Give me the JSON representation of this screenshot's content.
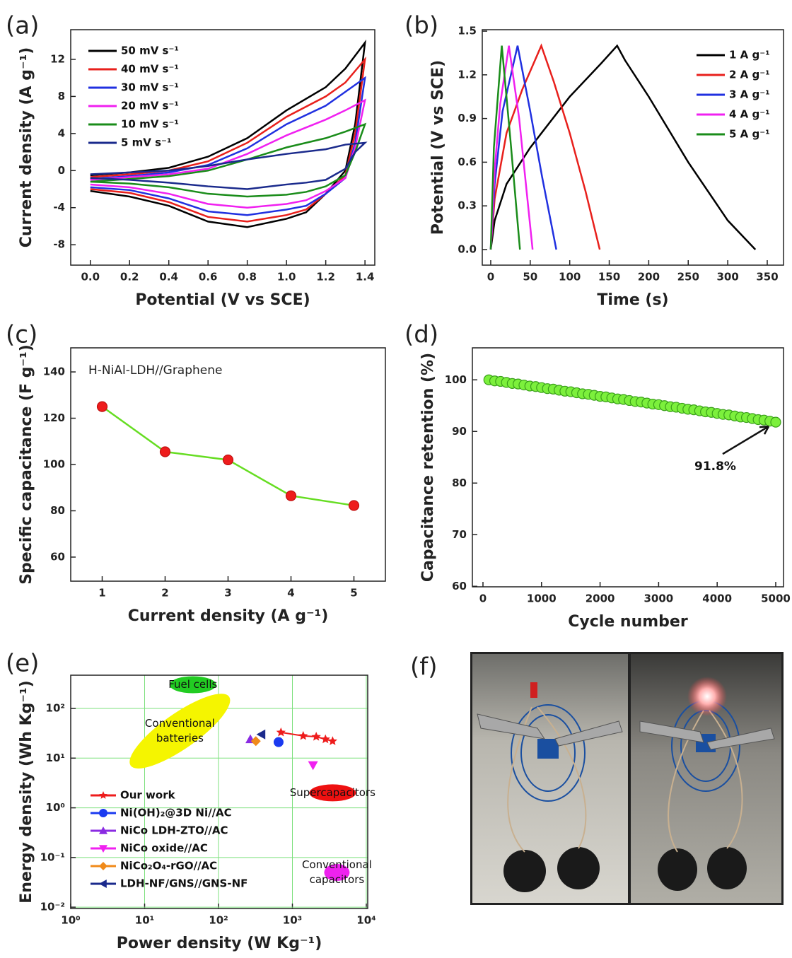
{
  "chart_data": [
    {
      "type": "line",
      "panel_label": "(a)",
      "xlabel": "Potential (V vs SCE)",
      "ylabel": "Current density (A g⁻¹)",
      "xlim": [
        -0.1,
        1.45
      ],
      "ylim": [
        -10.2,
        15.2
      ],
      "xticks": [
        {
          "value": 0,
          "label": "0.0"
        },
        0.2,
        0.4,
        0.6,
        0.8,
        {
          "value": 1,
          "label": "1.0"
        },
        1.2,
        1.4
      ],
      "yticks": [
        -8,
        -4,
        0,
        4,
        8,
        12
      ],
      "x": [
        0,
        0.2,
        0.4,
        0.6,
        0.8,
        1.0,
        1.2,
        1.3,
        1.4,
        1.35,
        1.3,
        1.2,
        1.1,
        1.0,
        0.8,
        0.6,
        0.4,
        0.2,
        0
      ],
      "series": [
        {
          "name": "50 mV s⁻¹",
          "color": "#000000",
          "values": [
            -0.5,
            -0.2,
            0.3,
            1.5,
            3.5,
            6.5,
            9,
            11,
            13.8,
            5,
            0,
            -2.5,
            -4.5,
            -5.2,
            -6.1,
            -5.5,
            -3.8,
            -2.8,
            -2.2
          ]
        },
        {
          "name": "40 mV s⁻¹",
          "color": "#e8201c",
          "values": [
            -0.7,
            -0.4,
            0,
            1.0,
            3,
            5.8,
            8,
            9.5,
            12,
            4,
            -0.5,
            -2.5,
            -4.2,
            -4.8,
            -5.5,
            -5,
            -3.4,
            -2.4,
            -2.0
          ]
        },
        {
          "name": "30 mV s⁻¹",
          "color": "#2030e0",
          "values": [
            -0.9,
            -0.6,
            -0.2,
            0.6,
            2.4,
            5,
            7,
            8.5,
            10,
            3,
            -0.8,
            -2.5,
            -3.8,
            -4.2,
            -4.8,
            -4.4,
            -3,
            -2.1,
            -1.8
          ]
        },
        {
          "name": "20 mV s⁻¹",
          "color": "#f020f0",
          "values": [
            -1,
            -0.7,
            -0.4,
            0.2,
            1.8,
            3.8,
            5.5,
            6.5,
            7.6,
            2.5,
            -0.8,
            -2.2,
            -3.2,
            -3.6,
            -4,
            -3.6,
            -2.5,
            -1.8,
            -1.5
          ]
        },
        {
          "name": "10 mV s⁻¹",
          "color": "#1a8c1a",
          "values": [
            -1.2,
            -0.9,
            -0.6,
            0,
            1.2,
            2.5,
            3.5,
            4.2,
            5,
            2,
            -0.5,
            -1.7,
            -2.3,
            -2.6,
            -2.8,
            -2.5,
            -1.8,
            -1.4,
            -1.2
          ]
        },
        {
          "name": "5 mV s⁻¹",
          "color": "#1a2a8c",
          "values": [
            -0.4,
            -0.2,
            0,
            0.5,
            1.2,
            1.8,
            2.3,
            2.8,
            3,
            2,
            0.2,
            -1,
            -1.3,
            -1.5,
            -2,
            -1.7,
            -1.3,
            -1,
            -0.8
          ]
        }
      ]
    },
    {
      "type": "line",
      "panel_label": "(b)",
      "xlabel": "Time (s)",
      "ylabel": "Potential (V vs SCE)",
      "xlim": [
        -10.7,
        370.6
      ],
      "ylim": [
        -0.107,
        1.51
      ],
      "xticks": [
        0,
        50,
        100,
        150,
        200,
        250,
        300,
        350
      ],
      "yticks": [
        {
          "value": 0,
          "label": "0.0"
        },
        0.3,
        0.6,
        0.9,
        1.2,
        1.5
      ],
      "series": [
        {
          "name": "1 A g⁻¹",
          "color": "#000000",
          "x": [
            0,
            5,
            20,
            50,
            100,
            140,
            160,
            170,
            200,
            250,
            300,
            335
          ],
          "values": [
            0,
            0.2,
            0.45,
            0.7,
            1.05,
            1.28,
            1.4,
            1.3,
            1.05,
            0.6,
            0.2,
            0
          ]
        },
        {
          "name": "2 A g⁻¹",
          "color": "#e8201c",
          "x": [
            0,
            5,
            20,
            40,
            64,
            80,
            100,
            120,
            138
          ],
          "values": [
            0,
            0.35,
            0.8,
            1.1,
            1.4,
            1.15,
            0.8,
            0.4,
            0
          ]
        },
        {
          "name": "3 A g⁻¹",
          "color": "#2030e0",
          "x": [
            0,
            5,
            15,
            34,
            50,
            65,
            83
          ],
          "values": [
            0,
            0.45,
            0.95,
            1.4,
            0.95,
            0.5,
            0
          ]
        },
        {
          "name": "4 A g⁻¹",
          "color": "#f020f0",
          "x": [
            0,
            5,
            12,
            23,
            36,
            53
          ],
          "values": [
            0,
            0.55,
            1.0,
            1.4,
            0.9,
            0
          ]
        },
        {
          "name": "5 A g⁻¹",
          "color": "#1a8c1a",
          "x": [
            0,
            4,
            14,
            25,
            37
          ],
          "values": [
            0,
            0.7,
            1.4,
            0.75,
            0
          ]
        }
      ]
    },
    {
      "type": "line",
      "panel_label": "(c)",
      "title": "H-NiAl-LDH//Graphene",
      "xlabel": "Current density (A g⁻¹)",
      "ylabel": "Specific capacitance (F g⁻¹)",
      "xlim": [
        0.5,
        5.5
      ],
      "ylim": [
        49.6,
        150.4
      ],
      "xticks": [
        1,
        2,
        3,
        4,
        5
      ],
      "yticks": [
        60,
        80,
        100,
        120,
        140
      ],
      "x": [
        1,
        2,
        3,
        4,
        5
      ],
      "series": [
        {
          "color": "#66dd22",
          "marker_color": "#ee1c1c",
          "values": [
            125,
            105.5,
            102,
            86.5,
            82.3
          ]
        }
      ]
    },
    {
      "type": "scatter",
      "panel_label": "(d)",
      "xlabel": "Cycle number",
      "ylabel": "Capacitance retention (%)",
      "annotation": "91.8%",
      "xlim": [
        -181,
        5133
      ],
      "ylim": [
        59.9,
        106.2
      ],
      "xticks": [
        0,
        1000,
        2000,
        3000,
        4000,
        5000
      ],
      "yticks": [
        60,
        70,
        80,
        90,
        100
      ],
      "x": [
        100,
        200,
        300,
        400,
        500,
        600,
        700,
        800,
        900,
        1000,
        1100,
        1200,
        1300,
        1400,
        1500,
        1600,
        1700,
        1800,
        1900,
        2000,
        2100,
        2200,
        2300,
        2400,
        2500,
        2600,
        2700,
        2800,
        2900,
        3000,
        3100,
        3200,
        3300,
        3400,
        3500,
        3600,
        3700,
        3800,
        3900,
        4000,
        4100,
        4200,
        4300,
        4400,
        4500,
        4600,
        4700,
        4800,
        4900,
        5000
      ],
      "series": [
        {
          "color": "#7cf03c",
          "values": [
            100,
            99.8,
            99.7,
            99.5,
            99.3,
            99.2,
            99.0,
            98.8,
            98.7,
            98.5,
            98.3,
            98.2,
            98.0,
            97.8,
            97.7,
            97.5,
            97.3,
            97.2,
            97.0,
            96.8,
            96.7,
            96.5,
            96.3,
            96.2,
            96.0,
            95.8,
            95.7,
            95.5,
            95.3,
            95.2,
            95.0,
            94.8,
            94.7,
            94.5,
            94.3,
            94.2,
            94.0,
            93.8,
            93.7,
            93.5,
            93.3,
            93.2,
            93.0,
            92.8,
            92.7,
            92.5,
            92.3,
            92.2,
            92.0,
            91.8
          ]
        }
      ]
    },
    {
      "type": "scatter",
      "panel_label": "(e)",
      "xlabel": "Power density (W Kg⁻¹)",
      "ylabel": "Energy density (Wh Kg⁻¹)",
      "xlog": true,
      "ylog": true,
      "grid": true,
      "xlim": [
        1,
        10450
      ],
      "ylim": [
        0.0094,
        467
      ],
      "xticks": [
        {
          "value": 1,
          "label": "10⁰"
        },
        {
          "value": 10,
          "label": "10¹"
        },
        {
          "value": 100,
          "label": "10²"
        },
        {
          "value": 1000,
          "label": "10³"
        },
        {
          "value": 10000,
          "label": "10⁴"
        }
      ],
      "yticks": [
        {
          "value": 0.01,
          "label": "10⁻²"
        },
        {
          "value": 0.1,
          "label": "10⁻¹"
        },
        {
          "value": 1,
          "label": "10⁰"
        },
        {
          "value": 10,
          "label": "10¹"
        },
        {
          "value": 100,
          "label": "10²"
        }
      ],
      "regions": [
        {
          "lines": [
            "Fuel cells"
          ],
          "x": 45,
          "y": 300,
          "color": "#22cc22"
        },
        {
          "lines": [
            "Conventional",
            "batteries"
          ],
          "x": 30,
          "y": 35,
          "color": "#f5f500"
        },
        {
          "lines": [
            "Supercapacitors"
          ],
          "x": 3500,
          "y": 2,
          "color": "#ee1111"
        },
        {
          "lines": [
            "Conventional",
            "capacitors"
          ],
          "x": 4000,
          "y": 0.05,
          "color": "#ee22ee"
        }
      ],
      "series": [
        {
          "name": "Our work",
          "color": "#ee1c1c",
          "marker": "star",
          "connect": true,
          "x": [
            700,
            1400,
            2100,
            2800,
            3500
          ],
          "values": [
            33,
            28,
            27,
            24,
            22
          ]
        },
        {
          "name": "Ni(OH)₂@3D Ni//AC",
          "color": "#1a3af0",
          "marker": "circle",
          "x": [
            650
          ],
          "values": [
            21
          ]
        },
        {
          "name": "NiCo LDH-ZTO//AC",
          "color": "#8a2be2",
          "marker": "up",
          "x": [
            270
          ],
          "values": [
            24
          ]
        },
        {
          "name": "NiCo oxide//AC",
          "color": "#f020f0",
          "marker": "down",
          "x": [
            1900
          ],
          "values": [
            7.2
          ]
        },
        {
          "name": "NiCo₂O₄-rGO//AC",
          "color": "#f08a1a",
          "marker": "diamond",
          "x": [
            320
          ],
          "values": [
            22
          ]
        },
        {
          "name": "LDH-NF/GNS//GNS-NF",
          "color": "#1a2a8c",
          "marker": "left",
          "x": [
            380
          ],
          "values": [
            30
          ]
        }
      ]
    }
  ],
  "photo_panel": {
    "panel_label": "(f)"
  }
}
